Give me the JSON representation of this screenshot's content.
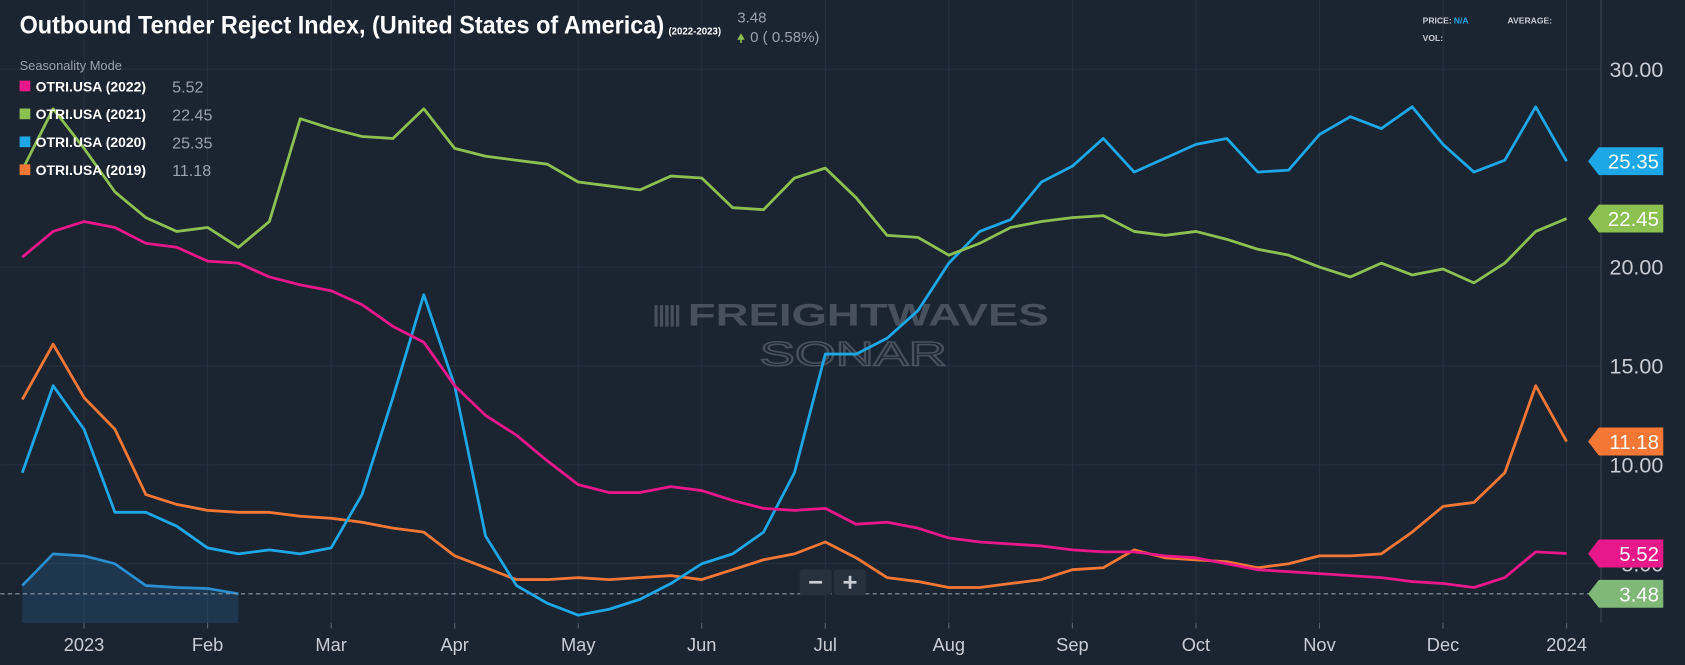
{
  "header": {
    "title": "Outbound Tender Reject Index, (United States of America)",
    "period": "(2022-2023)",
    "change": "0 ( 0.58%)",
    "mode": "Seasonality Mode",
    "price_label": "PRICE:",
    "price": "N/A",
    "average_label": "AVERAGE:",
    "vol_label": "VOL:"
  },
  "watermark": {
    "brand": "FREIGHTWAVES",
    "product": "SONAR"
  },
  "chart_data": {
    "type": "line",
    "categories": [
      null,
      null,
      "2023",
      null,
      null,
      null,
      "Feb",
      null,
      null,
      null,
      "Mar",
      null,
      null,
      null,
      "Apr",
      null,
      null,
      null,
      "May",
      null,
      null,
      null,
      "Jun",
      null,
      null,
      null,
      "Jul",
      null,
      null,
      null,
      "Aug",
      null,
      null,
      null,
      "Sep",
      null,
      null,
      null,
      "Oct",
      null,
      null,
      null,
      "Nov",
      null,
      null,
      null,
      "Dec",
      null,
      null,
      null,
      "2024"
    ],
    "series": [
      {
        "name": "OTRI.USA (2022)",
        "color": "#e8178a",
        "values": [
          20.5,
          21.8,
          22.3,
          22.0,
          21.2,
          21.0,
          20.3,
          20.2,
          19.5,
          19.1,
          18.8,
          18.1,
          17.0,
          16.2,
          14.0,
          12.5,
          11.5,
          10.2,
          9.0,
          8.6,
          8.6,
          8.9,
          8.7,
          8.2,
          7.8,
          7.7,
          7.8,
          7.0,
          7.1,
          6.8,
          6.3,
          6.1,
          6.0,
          5.9,
          5.7,
          5.6,
          5.6,
          5.4,
          5.3,
          5.0,
          4.7,
          4.6,
          4.5,
          4.4,
          4.3,
          4.1,
          4.0,
          3.8,
          4.3,
          5.6,
          5.52
        ]
      },
      {
        "name": "OTRI.USA (2021)",
        "color": "#8cc152",
        "values": [
          24.9,
          28.0,
          26.0,
          23.8,
          22.5,
          21.8,
          22.0,
          21.0,
          22.3,
          27.5,
          27.0,
          26.6,
          26.5,
          28.0,
          26.0,
          25.6,
          25.4,
          25.2,
          24.3,
          24.1,
          23.9,
          24.6,
          24.5,
          23.0,
          22.9,
          24.5,
          25.0,
          23.5,
          21.6,
          21.5,
          20.6,
          21.2,
          22.0,
          22.3,
          22.5,
          22.6,
          21.8,
          21.6,
          21.8,
          21.4,
          20.9,
          20.6,
          20.0,
          19.5,
          20.2,
          19.6,
          19.9,
          19.2,
          20.2,
          21.8,
          22.45
        ]
      },
      {
        "name": "OTRI.USA (2020)",
        "color": "#1ea7e6",
        "values": [
          9.6,
          14.0,
          11.8,
          7.6,
          7.6,
          6.9,
          5.8,
          5.5,
          5.7,
          5.5,
          5.8,
          8.5,
          13.4,
          18.6,
          14.0,
          6.4,
          3.9,
          3.0,
          2.4,
          2.7,
          3.2,
          4.0,
          5.0,
          5.5,
          6.6,
          9.6,
          15.6,
          15.6,
          16.4,
          17.8,
          20.2,
          21.8,
          22.4,
          24.3,
          25.1,
          26.5,
          24.8,
          25.5,
          26.2,
          26.5,
          24.8,
          24.9,
          26.7,
          27.6,
          27.0,
          28.1,
          26.2,
          24.8,
          25.4,
          28.1,
          25.35
        ]
      },
      {
        "name": "OTRI.USA (2019)",
        "color": "#f47735",
        "values": [
          13.3,
          16.1,
          13.4,
          11.8,
          8.5,
          8.0,
          7.7,
          7.6,
          7.6,
          7.4,
          7.3,
          7.1,
          6.8,
          6.6,
          5.4,
          4.8,
          4.2,
          4.2,
          4.3,
          4.2,
          4.3,
          4.4,
          4.2,
          4.7,
          5.2,
          5.5,
          6.1,
          5.3,
          4.3,
          4.1,
          3.8,
          3.8,
          4.0,
          4.2,
          4.7,
          4.8,
          5.7,
          5.3,
          5.2,
          5.1,
          4.8,
          5.0,
          5.4,
          5.4,
          5.5,
          6.6,
          7.9,
          8.1,
          9.6,
          14.0,
          11.18
        ]
      }
    ],
    "current": {
      "color": "#2a8fd0",
      "badge_color": "#7fb877",
      "value": 3.48,
      "values": [
        3.9,
        5.5,
        5.4,
        5.0,
        3.9,
        3.8,
        3.75,
        3.48,
        null,
        null,
        null,
        null,
        null,
        null,
        null,
        null,
        null,
        null,
        null,
        null,
        null,
        null,
        null,
        null,
        null,
        null,
        null,
        null,
        null,
        null,
        null,
        null,
        null,
        null,
        null,
        null,
        null,
        null,
        null,
        null,
        null,
        null,
        null,
        null,
        null,
        null,
        null,
        null,
        null,
        null,
        null
      ]
    },
    "ylim": [
      2,
      33.5
    ],
    "yticks": [
      {
        "value": 5,
        "label": "5.00"
      },
      {
        "value": 10,
        "label": "10.00"
      },
      {
        "value": 15,
        "label": "15.00"
      },
      {
        "value": 20,
        "label": "20.00"
      },
      {
        "value": 30,
        "label": "30.00"
      }
    ],
    "grid": true
  }
}
